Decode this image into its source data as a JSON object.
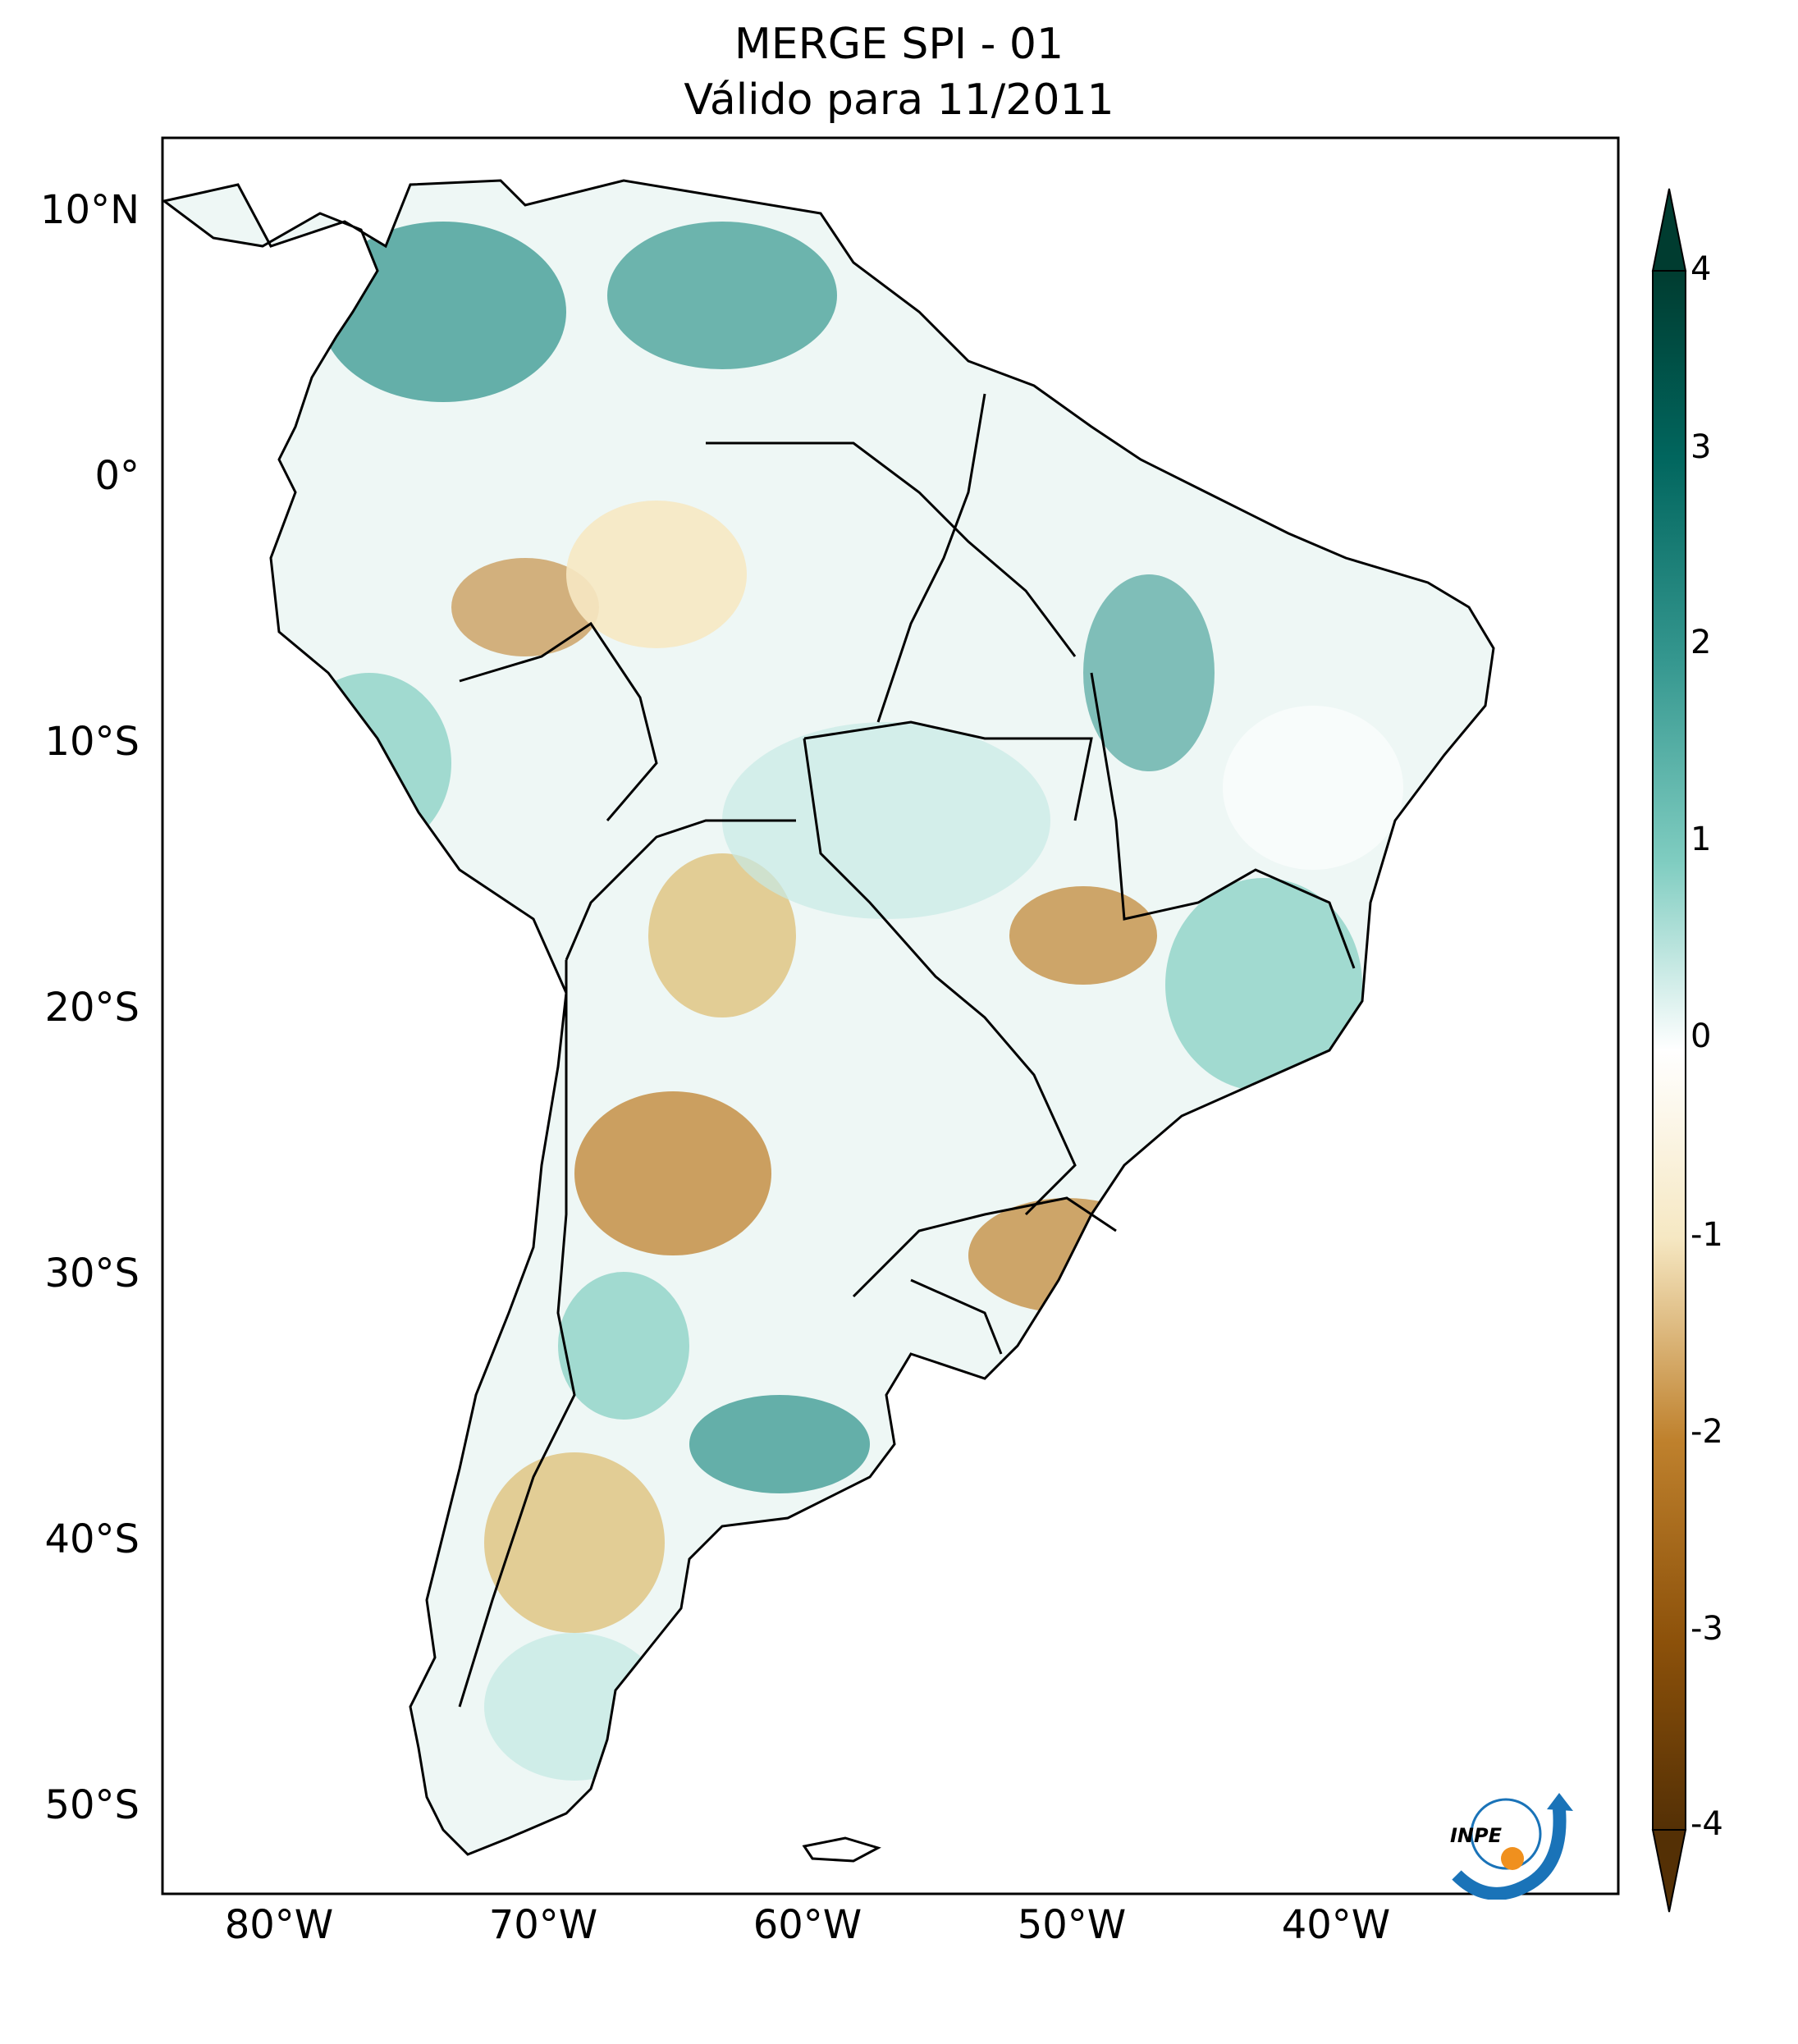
{
  "title": {
    "line1": "MERGE   SPI - 01",
    "line2": "Válido para 11/2011"
  },
  "axes": {
    "lat_ticks": [
      "10°N",
      "0°",
      "10°S",
      "20°S",
      "30°S",
      "40°S",
      "50°S"
    ],
    "lon_ticks": [
      "80°W",
      "70°W",
      "60°W",
      "50°W",
      "40°W"
    ],
    "lon_range": [
      -85,
      -30
    ],
    "lat_range": [
      -56,
      13
    ]
  },
  "colorbar": {
    "ticks": [
      "4",
      "3",
      "2",
      "1",
      "0",
      "-1",
      "-2",
      "-3",
      "-4"
    ],
    "range": [
      -4,
      4
    ],
    "colors": {
      "neg4": "#543005",
      "neg3": "#8c510a",
      "neg2": "#bf812d",
      "neg1": "#dfc27d",
      "negsmall": "#f6e8c3",
      "zero": "#ffffff",
      "possmall": "#c7eae5",
      "pos1": "#80cdc1",
      "pos2": "#35978f",
      "pos3": "#01665e",
      "pos4": "#003c30"
    }
  },
  "logo": {
    "text": "INPE"
  }
}
